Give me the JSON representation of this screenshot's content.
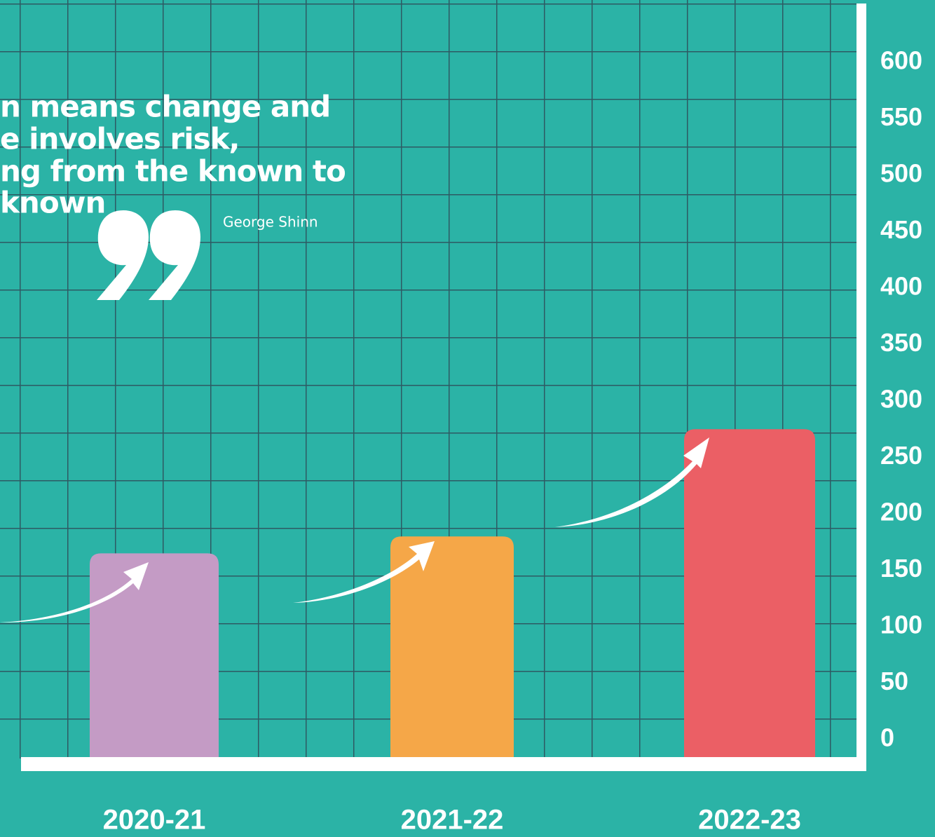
{
  "chart_data": {
    "type": "bar",
    "quote": [
      "n means change and",
      "e involves risk,",
      "ng from the known to",
      "known"
    ],
    "author": "George Shinn",
    "categories": [
      "2020-21",
      "2021-22",
      "2022-23"
    ],
    "values": [
      165,
      180,
      275
    ],
    "colors": [
      "#c49bc5",
      "#f5a748",
      "#eb5f65"
    ],
    "ylim": [
      0,
      600
    ],
    "yticks": [
      0,
      50,
      100,
      150,
      200,
      250,
      300,
      350,
      400,
      450,
      500,
      550,
      600
    ],
    "axis_side": "right"
  }
}
